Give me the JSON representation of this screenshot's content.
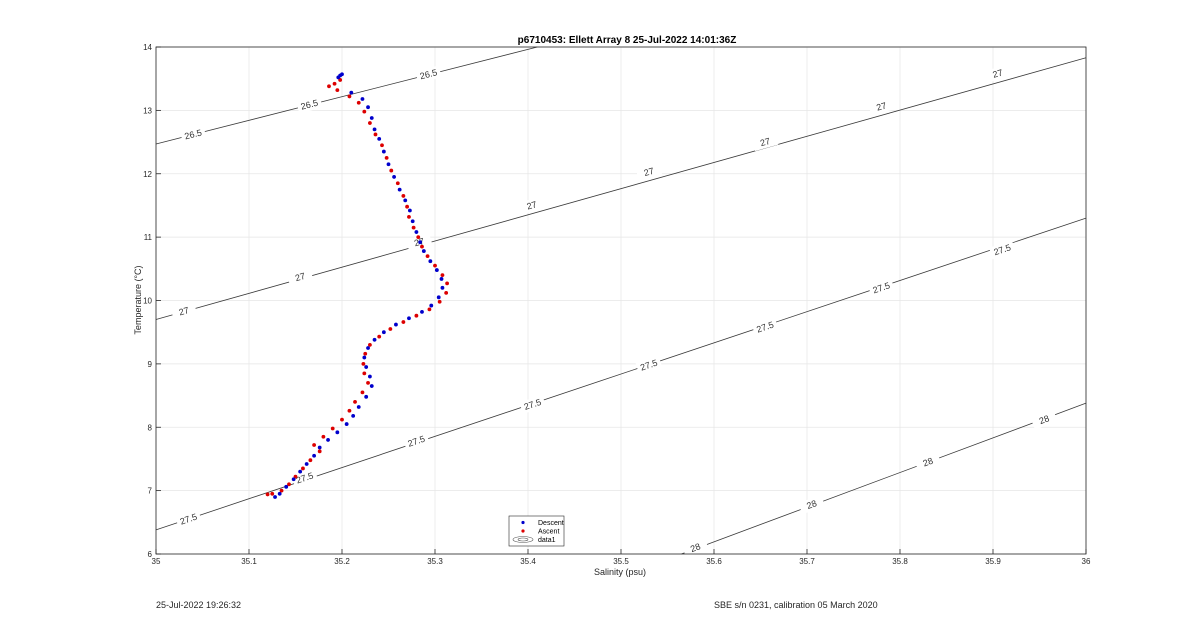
{
  "chart_data": {
    "type": "scatter",
    "title": "p6710453: Ellett Array 8 25-Jul-2022 14:01:36Z",
    "xlabel": "Salinity (psu)",
    "ylabel": "Temperature (°C)",
    "xlim": [
      35,
      36
    ],
    "ylim": [
      6,
      14
    ],
    "xticks": [
      "35",
      "35.1",
      "35.2",
      "35.3",
      "35.4",
      "35.5",
      "35.6",
      "35.7",
      "35.8",
      "35.9",
      "36"
    ],
    "yticks": [
      "6",
      "7",
      "8",
      "9",
      "10",
      "11",
      "12",
      "13",
      "14"
    ],
    "grid": true,
    "legend": {
      "placement": "bottom-center",
      "entries": [
        "Descent",
        "Ascent",
        "data1"
      ]
    },
    "series": [
      {
        "name": "Descent",
        "color": "#0000cc",
        "marker": "dot",
        "points": [
          [
            35.2,
            13.57
          ],
          [
            35.198,
            13.55
          ],
          [
            35.196,
            13.52
          ],
          [
            35.21,
            13.28
          ],
          [
            35.222,
            13.18
          ],
          [
            35.228,
            13.05
          ],
          [
            35.232,
            12.88
          ],
          [
            35.235,
            12.7
          ],
          [
            35.24,
            12.55
          ],
          [
            35.245,
            12.35
          ],
          [
            35.25,
            12.15
          ],
          [
            35.256,
            11.95
          ],
          [
            35.262,
            11.75
          ],
          [
            35.268,
            11.58
          ],
          [
            35.273,
            11.42
          ],
          [
            35.276,
            11.25
          ],
          [
            35.28,
            11.08
          ],
          [
            35.284,
            10.92
          ],
          [
            35.288,
            10.78
          ],
          [
            35.295,
            10.62
          ],
          [
            35.302,
            10.48
          ],
          [
            35.307,
            10.34
          ],
          [
            35.308,
            10.2
          ],
          [
            35.304,
            10.05
          ],
          [
            35.296,
            9.92
          ],
          [
            35.286,
            9.82
          ],
          [
            35.272,
            9.72
          ],
          [
            35.258,
            9.62
          ],
          [
            35.245,
            9.5
          ],
          [
            35.235,
            9.38
          ],
          [
            35.228,
            9.25
          ],
          [
            35.224,
            9.1
          ],
          [
            35.226,
            8.95
          ],
          [
            35.23,
            8.8
          ],
          [
            35.232,
            8.65
          ],
          [
            35.226,
            8.48
          ],
          [
            35.218,
            8.32
          ],
          [
            35.212,
            8.18
          ],
          [
            35.205,
            8.05
          ],
          [
            35.195,
            7.92
          ],
          [
            35.185,
            7.8
          ],
          [
            35.176,
            7.68
          ],
          [
            35.17,
            7.55
          ],
          [
            35.162,
            7.42
          ],
          [
            35.155,
            7.3
          ],
          [
            35.148,
            7.18
          ],
          [
            35.14,
            7.06
          ],
          [
            35.133,
            6.95
          ],
          [
            35.128,
            6.9
          ]
        ]
      },
      {
        "name": "Ascent",
        "color": "#dd0000",
        "marker": "dot",
        "points": [
          [
            35.198,
            13.48
          ],
          [
            35.192,
            13.42
          ],
          [
            35.186,
            13.38
          ],
          [
            35.195,
            13.32
          ],
          [
            35.208,
            13.22
          ],
          [
            35.218,
            13.12
          ],
          [
            35.224,
            12.98
          ],
          [
            35.23,
            12.8
          ],
          [
            35.236,
            12.62
          ],
          [
            35.243,
            12.45
          ],
          [
            35.248,
            12.25
          ],
          [
            35.253,
            12.05
          ],
          [
            35.26,
            11.85
          ],
          [
            35.266,
            11.65
          ],
          [
            35.27,
            11.48
          ],
          [
            35.272,
            11.32
          ],
          [
            35.277,
            11.15
          ],
          [
            35.282,
            11.0
          ],
          [
            35.286,
            10.85
          ],
          [
            35.292,
            10.7
          ],
          [
            35.3,
            10.55
          ],
          [
            35.308,
            10.4
          ],
          [
            35.313,
            10.27
          ],
          [
            35.312,
            10.12
          ],
          [
            35.305,
            9.98
          ],
          [
            35.294,
            9.86
          ],
          [
            35.28,
            9.76
          ],
          [
            35.266,
            9.66
          ],
          [
            35.252,
            9.55
          ],
          [
            35.24,
            9.43
          ],
          [
            35.23,
            9.3
          ],
          [
            35.225,
            9.16
          ],
          [
            35.223,
            9.0
          ],
          [
            35.224,
            8.85
          ],
          [
            35.228,
            8.7
          ],
          [
            35.222,
            8.55
          ],
          [
            35.214,
            8.4
          ],
          [
            35.208,
            8.26
          ],
          [
            35.2,
            8.12
          ],
          [
            35.19,
            7.98
          ],
          [
            35.18,
            7.85
          ],
          [
            35.17,
            7.72
          ],
          [
            35.176,
            7.62
          ],
          [
            35.166,
            7.48
          ],
          [
            35.158,
            7.35
          ],
          [
            35.15,
            7.22
          ],
          [
            35.143,
            7.1
          ],
          [
            35.135,
            7.0
          ],
          [
            35.125,
            6.95
          ],
          [
            35.12,
            6.94
          ]
        ]
      }
    ],
    "contours": [
      {
        "level": "26.5",
        "line": [
          [
            35,
            12.47
          ],
          [
            35.41,
            14.0
          ]
        ],
        "labels": [
          [
            35.04,
            12.62
          ],
          [
            35.165,
            13.09
          ],
          [
            35.293,
            13.57
          ]
        ]
      },
      {
        "level": "27",
        "line": [
          [
            35,
            9.7
          ],
          [
            36,
            13.83
          ]
        ],
        "labels": [
          [
            35.03,
            9.83
          ],
          [
            35.155,
            10.37
          ],
          [
            35.283,
            10.92
          ],
          [
            35.404,
            11.5
          ],
          [
            35.53,
            12.03
          ],
          [
            35.655,
            12.5
          ],
          [
            35.78,
            13.06
          ],
          [
            35.905,
            13.58
          ]
        ]
      },
      {
        "level": "27.5",
        "line": [
          [
            35,
            6.38
          ],
          [
            36,
            11.3
          ]
        ],
        "labels": [
          [
            35.035,
            6.55
          ],
          [
            35.16,
            7.2
          ],
          [
            35.28,
            7.78
          ],
          [
            35.405,
            8.36
          ],
          [
            35.53,
            8.98
          ],
          [
            35.655,
            9.58
          ],
          [
            35.78,
            10.2
          ],
          [
            35.91,
            10.8
          ]
        ]
      },
      {
        "level": "28",
        "line": [
          [
            35.565,
            6.0
          ],
          [
            36,
            8.38
          ]
        ],
        "labels": [
          [
            35.58,
            6.1
          ],
          [
            35.705,
            6.78
          ],
          [
            35.83,
            7.45
          ],
          [
            35.955,
            8.12
          ]
        ]
      }
    ]
  },
  "footer": {
    "left": "25-Jul-2022 19:26:32",
    "right": "SBE s/n 0231, calibration 05 March 2020"
  }
}
